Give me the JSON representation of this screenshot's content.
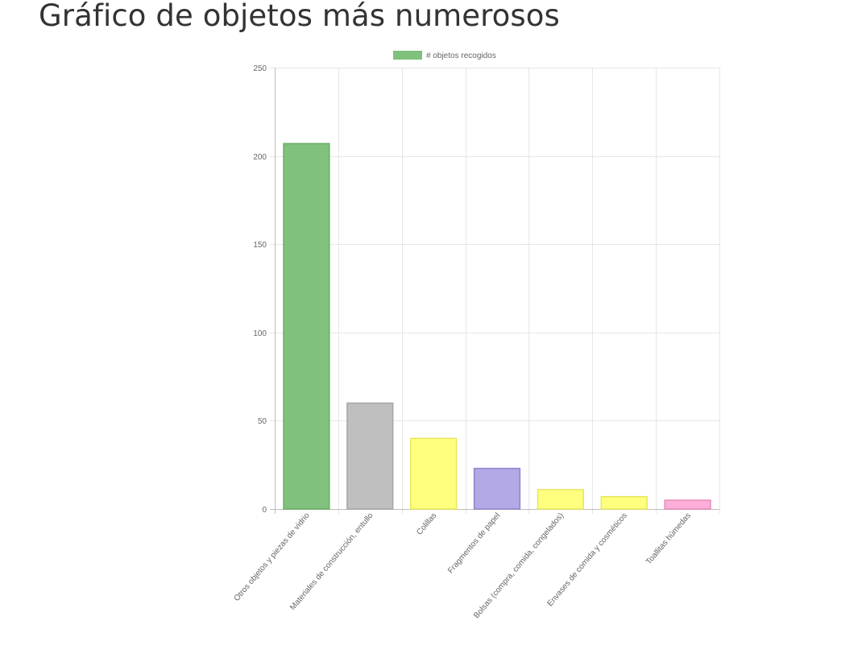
{
  "page": {
    "title": "Gráfico de objetos más numerosos"
  },
  "chart_data": {
    "type": "bar",
    "categories": [
      "Otros objetos y piezas de vidrio",
      "Materiales de construcción, entullo",
      "Colillas",
      "Fragmentos de papel",
      "Bolsas (compra, comida, congelados)",
      "Envases de comida y cosméticos",
      "Toallitas húmedas"
    ],
    "series": [
      {
        "name": "# objetos recogidos",
        "values": [
          207,
          60,
          40,
          23,
          11,
          7,
          5
        ]
      }
    ],
    "fill_colors": [
      "#7fc17d",
      "#bfbfbf",
      "#ffff7f",
      "#b3a9e6",
      "#ffff7f",
      "#ffff7f",
      "#ffaed8"
    ],
    "border_colors": [
      "#6aaf68",
      "#a6a6a6",
      "#e6e65c",
      "#8f84cc",
      "#e6e65c",
      "#e6e65c",
      "#e68cbb"
    ],
    "legend_color": "#7fc17d",
    "legend_position": "top",
    "ylim": [
      0,
      250
    ],
    "yticks": [
      0,
      50,
      100,
      150,
      200,
      250
    ],
    "grid": true,
    "xlabel": "",
    "ylabel": ""
  }
}
